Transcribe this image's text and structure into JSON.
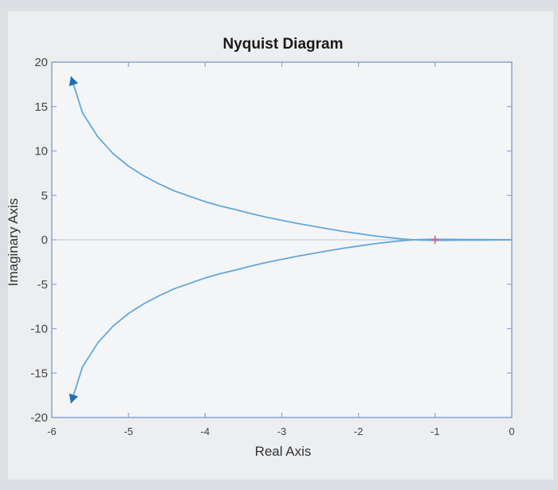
{
  "chart_data": {
    "type": "line",
    "title": "Nyquist Diagram",
    "xlabel": "Real Axis",
    "ylabel": "Imaginary Axis",
    "xlim": [
      -6,
      0
    ],
    "ylim": [
      -20,
      20
    ],
    "xticks": [
      -6,
      -5,
      -4,
      -3,
      -2,
      -1,
      0
    ],
    "yticks": [
      -20,
      -15,
      -10,
      -5,
      0,
      5,
      10,
      15,
      20
    ],
    "grid": false,
    "critical_point": {
      "x": -1,
      "y": 0,
      "marker": "+"
    },
    "series": [
      {
        "x": [
          -5.75,
          -5.6,
          -5.4,
          -5.2,
          -5.0,
          -4.8,
          -4.6,
          -4.4,
          -4.2,
          -4.0,
          -3.8,
          -3.6,
          -3.4,
          -3.2,
          -3.0,
          -2.8,
          -2.6,
          -2.4,
          -2.2,
          -2.0,
          -1.8,
          -1.6,
          -1.4,
          -1.2,
          -1.0,
          -0.8,
          -0.6,
          -0.4,
          -0.2,
          0
        ],
        "y": [
          18.4,
          14.3,
          11.6,
          9.7,
          8.3,
          7.2,
          6.3,
          5.5,
          4.9,
          4.3,
          3.8,
          3.4,
          2.95,
          2.55,
          2.2,
          1.85,
          1.55,
          1.25,
          0.95,
          0.7,
          0.45,
          0.25,
          0.08,
          -0.04,
          -0.06,
          -0.05,
          -0.04,
          -0.03,
          -0.02,
          0
        ],
        "color": "#62a8dd",
        "arrow_at_start": true
      },
      {
        "x": [
          -5.75,
          -5.6,
          -5.4,
          -5.2,
          -5.0,
          -4.8,
          -4.6,
          -4.4,
          -4.2,
          -4.0,
          -3.8,
          -3.6,
          -3.4,
          -3.2,
          -3.0,
          -2.8,
          -2.6,
          -2.4,
          -2.2,
          -2.0,
          -1.8,
          -1.6,
          -1.4,
          -1.2,
          -1.0,
          -0.8,
          -0.6,
          -0.4,
          -0.2,
          0
        ],
        "y": [
          -18.4,
          -14.3,
          -11.6,
          -9.7,
          -8.3,
          -7.2,
          -6.3,
          -5.5,
          -4.9,
          -4.3,
          -3.8,
          -3.4,
          -2.95,
          -2.55,
          -2.2,
          -1.85,
          -1.55,
          -1.25,
          -0.95,
          -0.7,
          -0.45,
          -0.25,
          -0.08,
          0.04,
          0.06,
          0.05,
          0.04,
          0.03,
          0.02,
          0
        ],
        "color": "#62a8dd",
        "arrow_at_start": true
      }
    ],
    "colors": {
      "axes_frame": "#8aa7cf",
      "zero_line": "#bfc6cf",
      "critical_point": "#e0607a",
      "arrow": "#1f6fb5",
      "tick_text": "#444444"
    }
  }
}
